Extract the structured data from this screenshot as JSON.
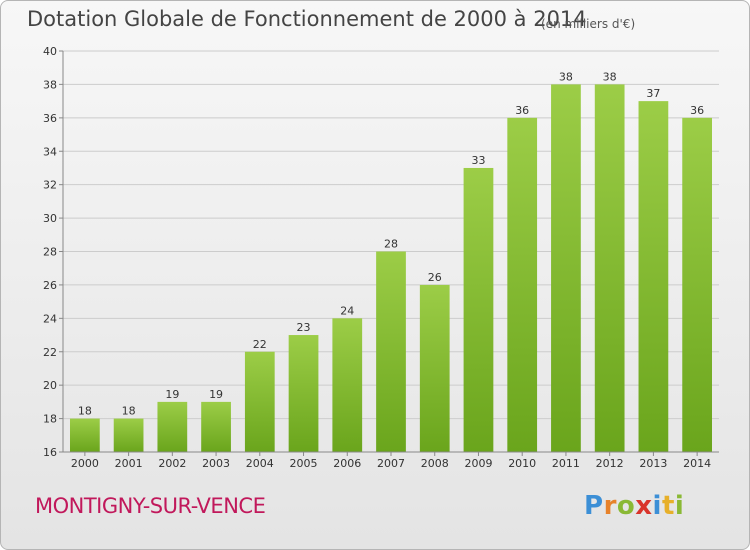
{
  "title": "Dotation Globale de Fonctionnement de 2000 à 2014",
  "unit_note": "(en milliers d'€)",
  "commune": "MONTIGNY-SUR-VENCE",
  "logo_text": "Proxiti",
  "colors": {
    "bar_light": "#9ccd47",
    "bar_dark": "#6aa51c",
    "grid": "#cccccc",
    "commune": "#c1185b"
  },
  "chart_data": {
    "type": "bar",
    "title": "Dotation Globale de Fonctionnement de 2000 à 2014",
    "xlabel": "",
    "ylabel": "",
    "ylim": [
      16,
      40
    ],
    "yticks": [
      16,
      18,
      20,
      22,
      24,
      26,
      28,
      30,
      32,
      34,
      36,
      38,
      40
    ],
    "grid": true,
    "categories": [
      "2000",
      "2001",
      "2002",
      "2003",
      "2004",
      "2005",
      "2006",
      "2007",
      "2008",
      "2009",
      "2010",
      "2011",
      "2012",
      "2013",
      "2014"
    ],
    "values": [
      18,
      18,
      19,
      19,
      22,
      23,
      24,
      28,
      26,
      33,
      36,
      38,
      38,
      37,
      36
    ]
  }
}
